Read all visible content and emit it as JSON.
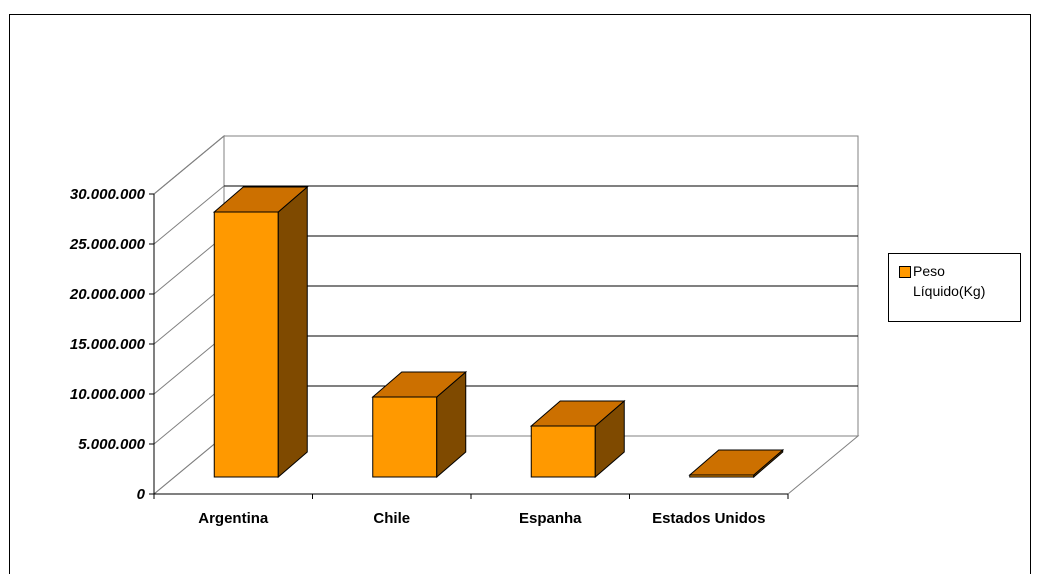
{
  "chart_data": {
    "type": "bar",
    "categories": [
      "Argentina",
      "Chile",
      "Espanha",
      "Estados Unidos"
    ],
    "series": [
      {
        "name": "Peso Líquido(Kg)",
        "values": [
          26500000,
          8000000,
          5100000,
          200000
        ]
      }
    ],
    "yticks": [
      "0",
      "5.000.000",
      "10.000.000",
      "15.000.000",
      "20.000.000",
      "25.000.000",
      "30.000.000"
    ],
    "ylim": [
      0,
      30000000
    ],
    "grid": true,
    "legend_position": "right",
    "colors": {
      "front": "#ff9900",
      "top": "#cc7000",
      "side": "#7f4a00"
    }
  },
  "legend": {
    "line1": "Peso",
    "line2": "Líquido(Kg)"
  }
}
